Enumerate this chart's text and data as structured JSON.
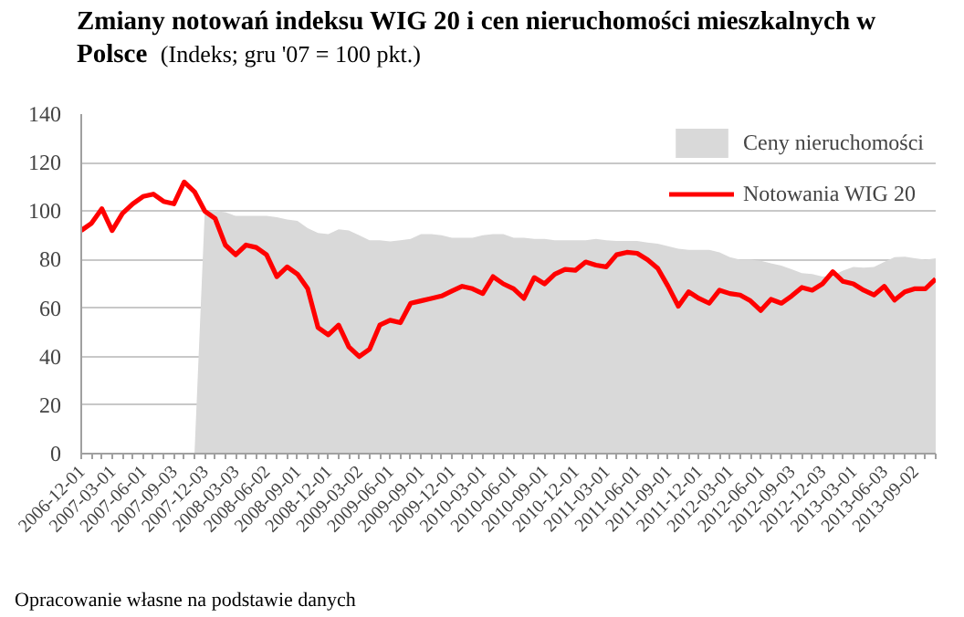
{
  "chart_data": {
    "type": "line",
    "title": "Zmiany notowań indeksu WIG 20 i cen nieruchomości mieszkalnych w Polsce",
    "subtitle": "(Indeks; gru '07 = 100 pkt.)",
    "categories": [
      "2006-12-01",
      null,
      null,
      "2007-03-01",
      null,
      null,
      "2007-06-01",
      null,
      null,
      "2007-09-03",
      null,
      null,
      "2007-12-03",
      null,
      null,
      "2008-03-03",
      null,
      null,
      "2008-06-02",
      null,
      null,
      "2008-09-01",
      null,
      null,
      "2008-12-01",
      null,
      null,
      "2009-03-02",
      null,
      null,
      "2009-06-01",
      null,
      null,
      "2009-09-01",
      null,
      null,
      "2009-12-01",
      null,
      null,
      "2010-03-01",
      null,
      null,
      "2010-06-01",
      null,
      null,
      "2010-09-01",
      null,
      null,
      "2010-12-01",
      null,
      null,
      "2011-03-01",
      null,
      null,
      "2011-06-01",
      null,
      null,
      "2011-09-01",
      null,
      null,
      "2011-12-01",
      null,
      null,
      "2012-03-01",
      null,
      null,
      "2012-06-01",
      null,
      null,
      "2012-09-03",
      null,
      null,
      "2012-12-03",
      null,
      null,
      "2013-03-01",
      null,
      null,
      "2013-06-03",
      null,
      null,
      "2013-09-02",
      null,
      null
    ],
    "series": [
      {
        "name": "Ceny nieruchomości",
        "type": "area",
        "color": "#d9d9d9",
        "values": [
          null,
          null,
          null,
          null,
          null,
          null,
          null,
          null,
          null,
          null,
          null,
          0,
          100,
          100,
          99.5,
          98,
          98,
          98,
          98,
          97.5,
          96.5,
          96,
          93,
          91,
          90.5,
          92.5,
          92,
          90,
          88,
          88,
          87.5,
          88,
          88.5,
          90.5,
          90.5,
          90,
          89,
          89,
          89,
          90,
          90.5,
          90.5,
          89,
          89,
          88.5,
          88.5,
          88,
          88,
          88,
          88,
          88.5,
          88,
          87.7,
          87.7,
          87.7,
          87,
          86.6,
          85.5,
          84.5,
          84,
          84,
          84,
          83,
          81,
          80,
          80,
          79.5,
          78.5,
          77.5,
          76,
          74.4,
          74,
          73,
          73.5,
          75.5,
          77,
          76.7,
          77,
          79,
          81,
          81.2,
          80.5,
          80,
          80.5
        ]
      },
      {
        "name": "Notowania WIG 20",
        "color": "#ff0000",
        "values": [
          92,
          95,
          101,
          92,
          99,
          103,
          106,
          107,
          104,
          103,
          112,
          108,
          100,
          97,
          86,
          82,
          86,
          85,
          82,
          73,
          77,
          74,
          68,
          52,
          49,
          53,
          44,
          40,
          43,
          53,
          55,
          54,
          62,
          63,
          64,
          65,
          67,
          69,
          68,
          66,
          73,
          70,
          68,
          64,
          72.6,
          70,
          74,
          76,
          75.6,
          79,
          77.7,
          77,
          82,
          83,
          82.6,
          80,
          76.4,
          69,
          60.8,
          66.7,
          64,
          62,
          67.4,
          66,
          65.4,
          63,
          59,
          63.6,
          62,
          65,
          68.5,
          67.4,
          70,
          75,
          71,
          70,
          67.4,
          65.4,
          69,
          63.3,
          66.7,
          68,
          68,
          72
        ]
      }
    ],
    "ylim": [
      0,
      140
    ],
    "yticks": [
      0,
      20,
      40,
      60,
      80,
      100,
      120,
      140
    ],
    "grid": "y",
    "legend": "top right",
    "marker": "none",
    "line_style": "solid",
    "annotations": [
      "Opracowanie własne na podstawie danych"
    ]
  }
}
